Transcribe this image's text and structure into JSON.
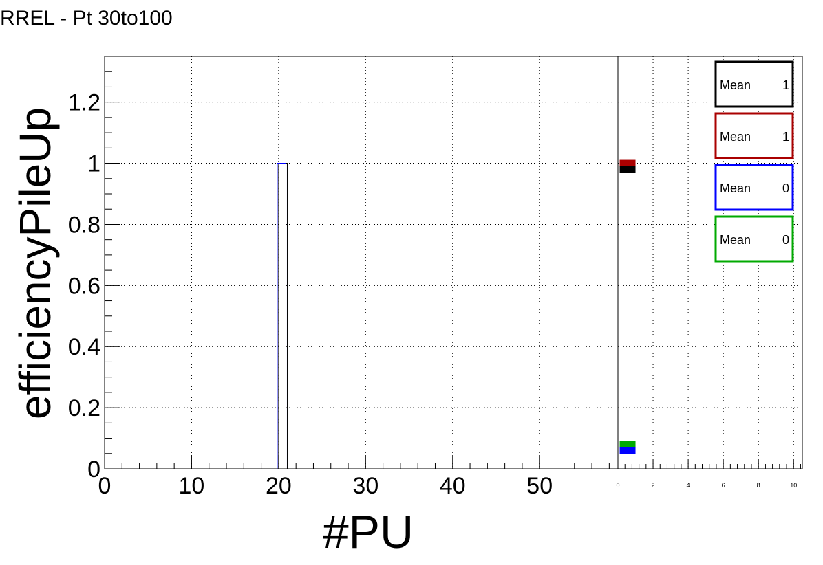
{
  "title": "RREL - Pt 30to100",
  "chart_data": [
    {
      "type": "bar",
      "xlabel": "#PU",
      "ylabel": "efficiencyPileUp",
      "xlim": [
        0,
        59
      ],
      "ylim": [
        0,
        1.35
      ],
      "x_ticks": [
        0,
        10,
        20,
        30,
        40,
        50
      ],
      "y_ticks": [
        0,
        0.2,
        0.4,
        0.6,
        0.8,
        1,
        1.2
      ],
      "y_tick_labels": [
        "0",
        "0.2",
        "0.4",
        "0.6",
        "0.8",
        "1",
        "1.2"
      ],
      "grid": true,
      "series": [
        {
          "color": "#000000",
          "bins": [
            {
              "x_low": 20,
              "x_high": 21,
              "value": 1
            }
          ]
        },
        {
          "color": "#0000ff",
          "bins": [
            {
              "x_low": 20,
              "x_high": 21,
              "value": 1
            }
          ]
        }
      ]
    },
    {
      "type": "bar",
      "xlim": [
        0,
        10.5
      ],
      "x_ticks": [
        0,
        2,
        4,
        6,
        8,
        10
      ],
      "x_tick_labels": [
        "0",
        "2",
        "4",
        "6",
        "8",
        "10"
      ],
      "grid": true,
      "series": [
        {
          "color": "#aa0000",
          "value": 1.0
        },
        {
          "color": "#000000",
          "value": 0.98
        },
        {
          "color": "#00aa00",
          "value": 0.08
        },
        {
          "color": "#0000ff",
          "value": 0.06
        }
      ]
    }
  ],
  "stats_boxes": [
    {
      "label": "Mean",
      "value": "1",
      "color": "#000000"
    },
    {
      "label": "Mean",
      "value": "1",
      "color": "#aa0000"
    },
    {
      "label": "Mean",
      "value": "0",
      "color": "#0000ff"
    },
    {
      "label": "Mean",
      "value": "0",
      "color": "#00aa00"
    }
  ]
}
